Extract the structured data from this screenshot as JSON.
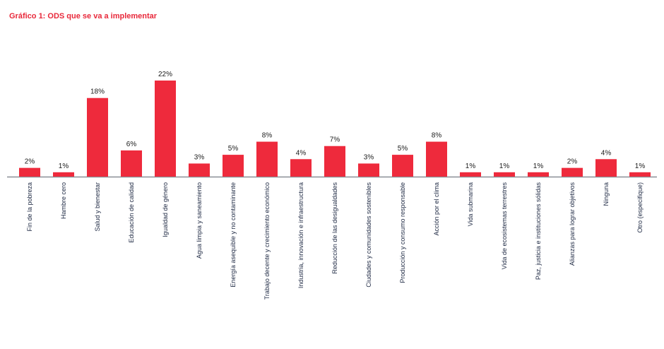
{
  "chart_data": {
    "type": "bar",
    "title": "Gráfico 1: ODS que se va a implementar",
    "xlabel": "",
    "ylabel": "",
    "ylim": [
      0,
      22
    ],
    "grid": false,
    "bar_color": "#ee2a3c",
    "label_color": "#1f2a44",
    "categories": [
      "Fin de la pobreza",
      "Hambre cero",
      "Salud y bienestar",
      "Educación de calidad",
      "Igualdad de género",
      "Agua limpia y saneamiento",
      "Energía asequible y no contaminante",
      "Trabajo decente y crecimiento económico",
      "Industria, innovación e infraestructura",
      "Reducción de las desigualdades",
      "Ciudades y comunidades sostenibles",
      "Producción y consumo responsable",
      "Acción por el clima",
      "Vida submarina",
      "Vida de ecosistemas terrestres",
      "Paz, justicia e instituciones sólidas",
      "Alianzas para lograr objetivos",
      "Ninguna",
      "Otro (especifique)"
    ],
    "values": [
      2,
      1,
      18,
      6,
      22,
      3,
      5,
      8,
      4,
      7,
      3,
      5,
      8,
      1,
      1,
      1,
      2,
      4,
      1
    ],
    "data_labels": [
      "2%",
      "1%",
      "18%",
      "6%",
      "22%",
      "3%",
      "5%",
      "8%",
      "4%",
      "7%",
      "3%",
      "5%",
      "8%",
      "1%",
      "1%",
      "1%",
      "2%",
      "4%",
      "1%"
    ]
  }
}
